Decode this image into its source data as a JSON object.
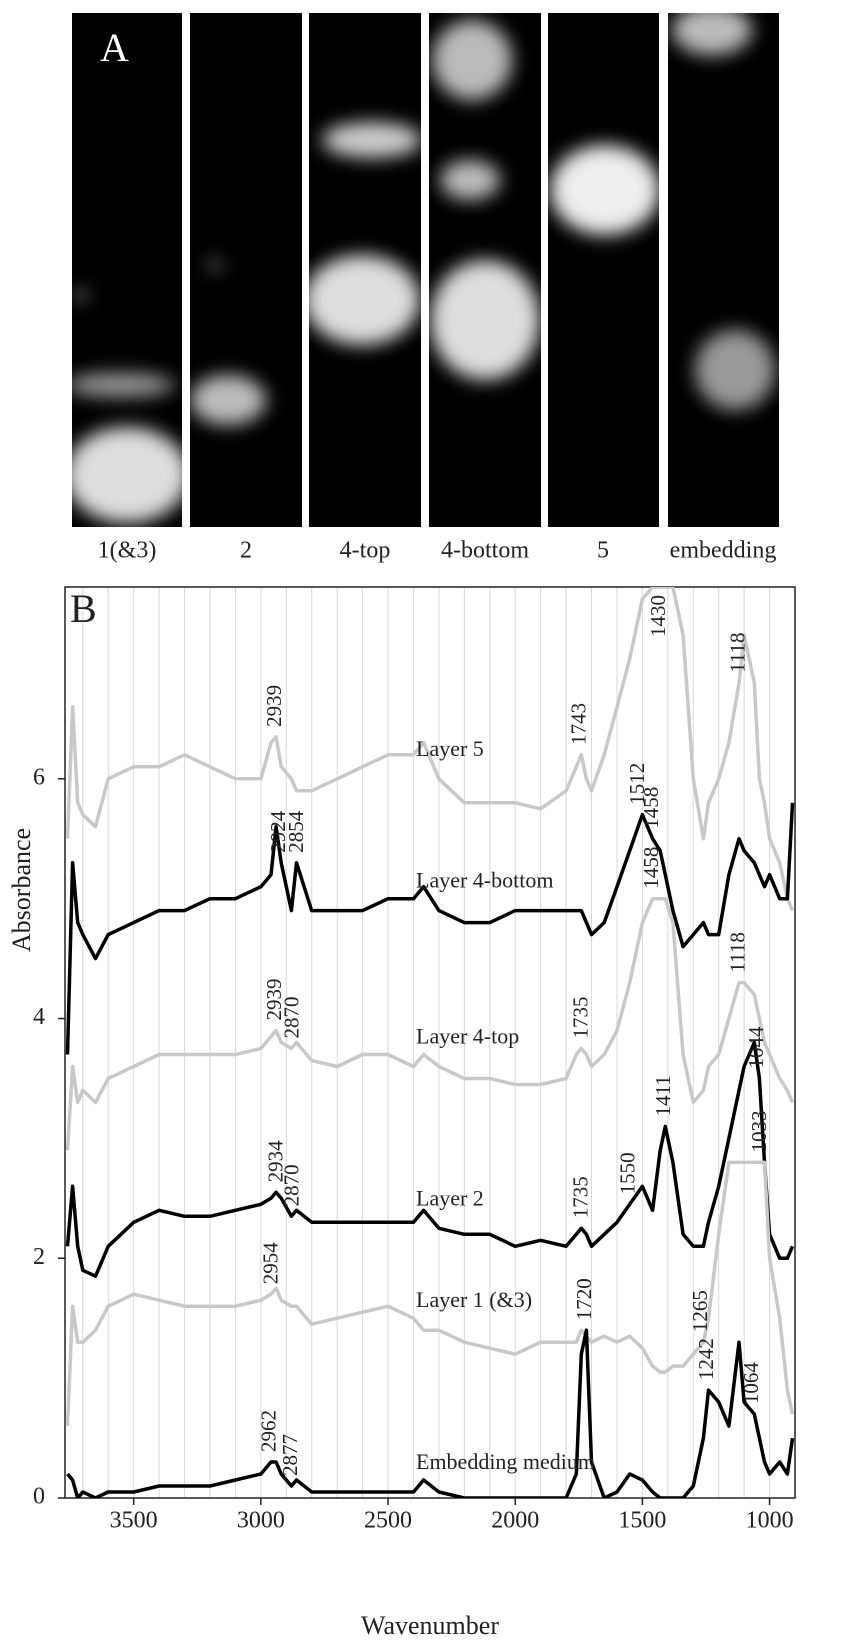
{
  "panel_a": {
    "label": "A",
    "images": [
      "1(&3)",
      "2",
      "4-top",
      "4-bottom",
      "5",
      "embedding"
    ]
  },
  "chart_data": {
    "type": "line",
    "panel_label": "B",
    "x_label": "Wavenumber",
    "y_label": "Absorbance",
    "xlim": [
      3770,
      900
    ],
    "ylim": [
      0,
      7.6
    ],
    "xticks": [
      3500,
      3000,
      2500,
      2000,
      1500,
      1000
    ],
    "yticks": [
      0,
      2,
      4,
      6
    ],
    "xgrid": [
      3700,
      3600,
      3500,
      3400,
      3300,
      3200,
      3100,
      3000,
      2900,
      2800,
      2700,
      2600,
      2500,
      2400,
      2300,
      2200,
      2100,
      2000,
      1900,
      1800,
      1700,
      1600,
      1500,
      1400,
      1300,
      1200,
      1100,
      1000
    ],
    "x": [
      3760,
      3740,
      3720,
      3700,
      3650,
      3600,
      3500,
      3400,
      3300,
      3200,
      3100,
      3000,
      2960,
      2940,
      2920,
      2880,
      2860,
      2800,
      2700,
      2600,
      2500,
      2400,
      2360,
      2300,
      2200,
      2100,
      2000,
      1900,
      1800,
      1760,
      1740,
      1720,
      1700,
      1650,
      1600,
      1550,
      1500,
      1460,
      1430,
      1410,
      1380,
      1340,
      1300,
      1260,
      1240,
      1200,
      1160,
      1120,
      1100,
      1060,
      1040,
      1020,
      1000,
      960,
      930,
      910
    ],
    "series": [
      {
        "name": "Layer 5",
        "color": "#c8c8c8",
        "peaks": [
          "2939",
          "1743",
          "1430",
          "1118"
        ],
        "values": [
          5.5,
          6.6,
          5.8,
          5.7,
          5.6,
          6.0,
          6.1,
          6.1,
          6.2,
          6.1,
          6.0,
          6.0,
          6.3,
          6.35,
          6.1,
          6.0,
          5.9,
          5.9,
          6.0,
          6.1,
          6.2,
          6.2,
          6.3,
          6.0,
          5.8,
          5.8,
          5.8,
          5.75,
          5.9,
          6.1,
          6.2,
          6.0,
          5.9,
          6.2,
          6.6,
          7.0,
          7.5,
          7.6,
          7.6,
          7.6,
          7.6,
          7.2,
          6.0,
          5.5,
          5.8,
          6.0,
          6.3,
          6.8,
          7.2,
          6.8,
          6.0,
          5.8,
          5.5,
          5.3,
          5.0,
          4.9
        ]
      },
      {
        "name": "Layer 4-bottom",
        "color": "#000000",
        "peaks": [
          "2924",
          "2854",
          "1512",
          "1458"
        ],
        "values": [
          3.7,
          5.3,
          4.8,
          4.7,
          4.5,
          4.7,
          4.8,
          4.9,
          4.9,
          5.0,
          5.0,
          5.1,
          5.2,
          5.6,
          5.3,
          4.9,
          5.3,
          4.9,
          4.9,
          4.9,
          5.0,
          5.0,
          5.1,
          4.9,
          4.8,
          4.8,
          4.9,
          4.9,
          4.9,
          4.9,
          4.9,
          4.8,
          4.7,
          4.8,
          5.1,
          5.4,
          5.7,
          5.5,
          5.4,
          5.2,
          4.9,
          4.6,
          4.7,
          4.8,
          4.7,
          4.7,
          5.2,
          5.5,
          5.4,
          5.3,
          5.2,
          5.1,
          5.2,
          5.0,
          5.0,
          5.8
        ]
      },
      {
        "name": "Layer 4-top",
        "color": "#c8c8c8",
        "peaks": [
          "2939",
          "2870",
          "1735",
          "1458",
          "1118"
        ],
        "values": [
          2.9,
          3.6,
          3.3,
          3.4,
          3.3,
          3.5,
          3.6,
          3.7,
          3.7,
          3.7,
          3.7,
          3.75,
          3.85,
          3.9,
          3.8,
          3.75,
          3.8,
          3.65,
          3.6,
          3.7,
          3.7,
          3.6,
          3.7,
          3.6,
          3.5,
          3.5,
          3.45,
          3.45,
          3.5,
          3.7,
          3.75,
          3.7,
          3.6,
          3.7,
          3.9,
          4.3,
          4.8,
          5.0,
          5.0,
          5.0,
          4.8,
          3.7,
          3.3,
          3.4,
          3.6,
          3.7,
          4.0,
          4.3,
          4.3,
          4.2,
          4.0,
          3.8,
          3.7,
          3.5,
          3.4,
          3.3
        ]
      },
      {
        "name": "Layer 2",
        "color": "#000000",
        "peaks": [
          "2934",
          "2870",
          "1735",
          "1550",
          "1411",
          "1044"
        ],
        "values": [
          2.1,
          2.6,
          2.1,
          1.9,
          1.85,
          2.1,
          2.3,
          2.4,
          2.35,
          2.35,
          2.4,
          2.45,
          2.5,
          2.55,
          2.5,
          2.35,
          2.4,
          2.3,
          2.3,
          2.3,
          2.3,
          2.3,
          2.4,
          2.25,
          2.2,
          2.2,
          2.1,
          2.15,
          2.1,
          2.2,
          2.25,
          2.2,
          2.1,
          2.2,
          2.3,
          2.45,
          2.6,
          2.4,
          2.9,
          3.1,
          2.8,
          2.2,
          2.1,
          2.1,
          2.3,
          2.6,
          3.0,
          3.4,
          3.6,
          3.8,
          3.5,
          2.8,
          2.2,
          2.0,
          2.0,
          2.1
        ]
      },
      {
        "name": "Layer 1 (&3)",
        "color": "#c8c8c8",
        "peaks": [
          "2954",
          "1265",
          "1033"
        ],
        "values": [
          0.6,
          1.6,
          1.3,
          1.3,
          1.4,
          1.6,
          1.7,
          1.65,
          1.6,
          1.6,
          1.6,
          1.65,
          1.7,
          1.75,
          1.65,
          1.6,
          1.6,
          1.45,
          1.5,
          1.55,
          1.6,
          1.5,
          1.4,
          1.4,
          1.3,
          1.25,
          1.2,
          1.3,
          1.3,
          1.3,
          1.4,
          1.35,
          1.3,
          1.35,
          1.3,
          1.35,
          1.25,
          1.1,
          1.05,
          1.05,
          1.1,
          1.1,
          1.2,
          1.3,
          1.5,
          2.2,
          2.8,
          2.8,
          2.8,
          2.8,
          2.8,
          2.8,
          2.0,
          1.5,
          0.9,
          0.7
        ]
      },
      {
        "name": "Embedding medium",
        "color": "#000000",
        "peaks": [
          "2962",
          "2877",
          "1720",
          "1242",
          "1064"
        ],
        "values": [
          0.2,
          0.15,
          0.0,
          0.05,
          0.0,
          0.05,
          0.05,
          0.1,
          0.1,
          0.1,
          0.15,
          0.2,
          0.3,
          0.3,
          0.2,
          0.1,
          0.15,
          0.05,
          0.05,
          0.05,
          0.05,
          0.05,
          0.15,
          0.05,
          0.0,
          0.0,
          0.0,
          0.0,
          0.0,
          0.2,
          1.2,
          1.4,
          0.3,
          0.0,
          0.05,
          0.2,
          0.15,
          0.05,
          0.0,
          0.0,
          0.0,
          0.0,
          0.1,
          0.5,
          0.9,
          0.8,
          0.6,
          1.3,
          0.8,
          0.7,
          0.5,
          0.3,
          0.2,
          0.3,
          0.2,
          0.5
        ]
      }
    ]
  }
}
